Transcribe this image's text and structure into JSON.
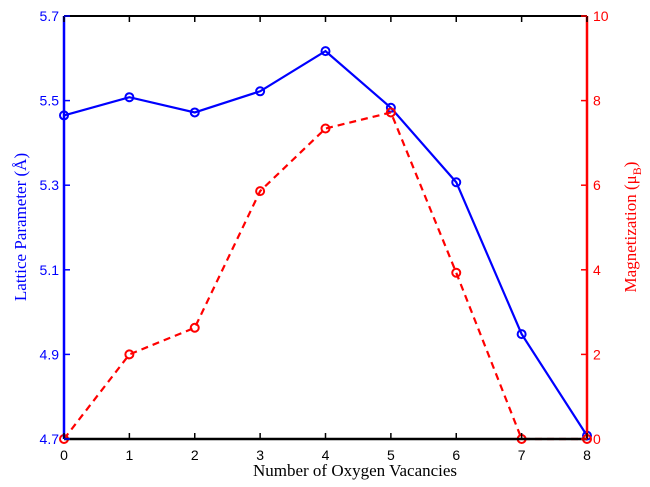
{
  "chart_data": {
    "type": "line",
    "xlabel": "Number of Oxygen Vacancies",
    "ylabel_left": "Lattice Parameter (Å)",
    "ylabel_right_main": "Magnetization (μ",
    "ylabel_right_sub": "B",
    "ylabel_right_close": ")",
    "x": [
      0,
      1,
      2,
      3,
      4,
      5,
      6,
      7,
      8
    ],
    "xlim": [
      0,
      8
    ],
    "ylim_left": [
      4.7,
      5.7
    ],
    "ylim_right": [
      0,
      10
    ],
    "xticks": [
      "0",
      "1",
      "2",
      "3",
      "4",
      "5",
      "6",
      "7",
      "8"
    ],
    "yticks_left": [
      "4.7",
      "4.9",
      "5.1",
      "5.3",
      "5.5",
      "5.7"
    ],
    "yticks_right": [
      "0",
      "2",
      "4",
      "6",
      "8",
      "10"
    ],
    "grid": false,
    "series": [
      {
        "axis": "left",
        "color": "#0000ff",
        "style": "solid",
        "marker": "circle",
        "values": [
          5.465,
          5.508,
          5.472,
          5.522,
          5.617,
          5.483,
          5.307,
          4.948,
          4.708
        ]
      },
      {
        "axis": "right",
        "color": "#ff0000",
        "style": "dashed",
        "marker": "circle",
        "values": [
          0,
          2.0,
          2.63,
          5.86,
          7.34,
          7.72,
          3.93,
          0,
          0
        ]
      }
    ]
  }
}
